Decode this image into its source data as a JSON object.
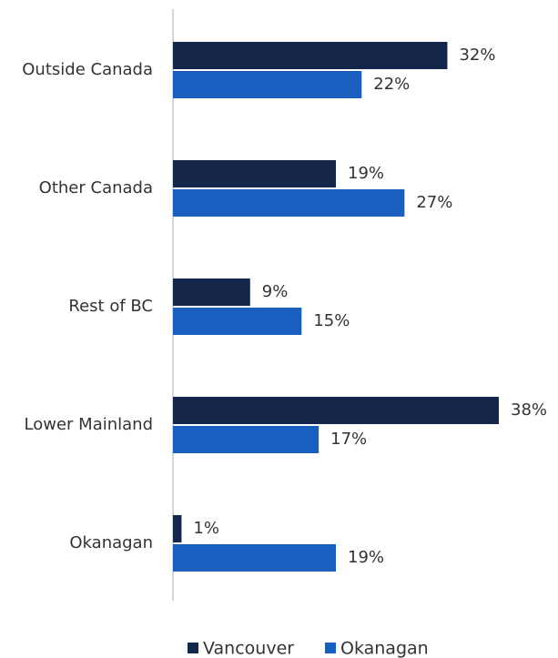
{
  "chart_data": {
    "type": "hbar",
    "categories": [
      "Outside Canada",
      "Other Canada",
      "Rest of BC",
      "Lower Mainland",
      "Okanagan"
    ],
    "series": [
      {
        "name": "Vancouver",
        "color": "#14264a",
        "values": [
          32,
          19,
          9,
          38,
          1
        ],
        "value_labels": [
          "32%",
          "19%",
          "9%",
          "38%",
          "1%"
        ]
      },
      {
        "name": "Okanagan",
        "color": "#1a5fc0",
        "values": [
          22,
          27,
          15,
          17,
          19
        ],
        "value_labels": [
          "22%",
          "27%",
          "15%",
          "17%",
          "19%"
        ]
      }
    ],
    "legend": "bottom"
  }
}
